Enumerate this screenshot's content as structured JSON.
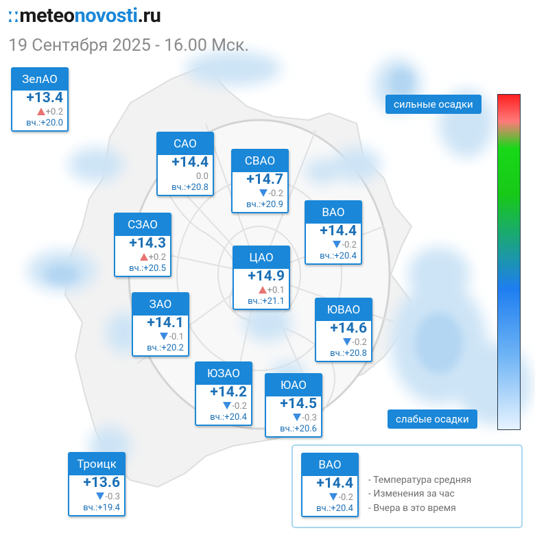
{
  "brand": {
    "mark": "ːː",
    "part1": "meteo",
    "part2": "novosti",
    "part3": ".ru"
  },
  "subtitle": "19 Сентября 2025 - 16.00 Мск.",
  "colors": {
    "accent": "#1a87d8",
    "temp_text": "#1a6fb5",
    "up": "#e8736f",
    "down": "#3a8be0",
    "precip_blue": "#cde4f6"
  },
  "scale": {
    "top_label": "сильные осадки",
    "bottom_label": "слабые осадки",
    "stops": [
      "#ff2020",
      "#ff7a7a",
      "#18d818",
      "#18c818",
      "#1e7ef0",
      "#6fb4f5",
      "#e7f3ff"
    ]
  },
  "districts": [
    {
      "name": "ЗелАО",
      "temp": "+13.4",
      "dir": "up",
      "change": "+0.2",
      "yday_label": "вч.:",
      "yday": "+20.0"
    },
    {
      "name": "САО",
      "temp": "+14.4",
      "dir": "none",
      "change": "0.0",
      "yday_label": "вч.:",
      "yday": "+20.8"
    },
    {
      "name": "СВАО",
      "temp": "+14.7",
      "dir": "down",
      "change": "-0.2",
      "yday_label": "вч.:",
      "yday": "+20.9"
    },
    {
      "name": "ВАО",
      "temp": "+14.4",
      "dir": "down",
      "change": "-0.2",
      "yday_label": "вч.:",
      "yday": "+20.4"
    },
    {
      "name": "СЗАО",
      "temp": "+14.3",
      "dir": "up",
      "change": "+0.2",
      "yday_label": "вч.:",
      "yday": "+20.5"
    },
    {
      "name": "ЦАО",
      "temp": "+14.9",
      "dir": "up",
      "change": "+0.1",
      "yday_label": "вч.:",
      "yday": "+21.1"
    },
    {
      "name": "ЗАО",
      "temp": "+14.1",
      "dir": "down",
      "change": "-0.1",
      "yday_label": "вч.:",
      "yday": "+20.2"
    },
    {
      "name": "ЮВАО",
      "temp": "+14.6",
      "dir": "down",
      "change": "-0.2",
      "yday_label": "вч.:",
      "yday": "+20.8"
    },
    {
      "name": "ЮЗАО",
      "temp": "+14.2",
      "dir": "down",
      "change": "-0.2",
      "yday_label": "вч.:",
      "yday": "+20.4"
    },
    {
      "name": "ЮАО",
      "temp": "+14.5",
      "dir": "down",
      "change": "-0.3",
      "yday_label": "вч.:",
      "yday": "+20.6"
    },
    {
      "name": "Троицк",
      "temp": "+13.6",
      "dir": "down",
      "change": "-0.3",
      "yday_label": "вч.:",
      "yday": "+19.4"
    }
  ],
  "legend": {
    "card": {
      "name": "ВАО",
      "temp": "+14.4",
      "dir": "down",
      "change": "-0.2",
      "yday_label": "вч.:",
      "yday": "+20.4"
    },
    "items": [
      "- Температура средняя",
      "- Изменения за час",
      "- Вчера в это время"
    ]
  }
}
